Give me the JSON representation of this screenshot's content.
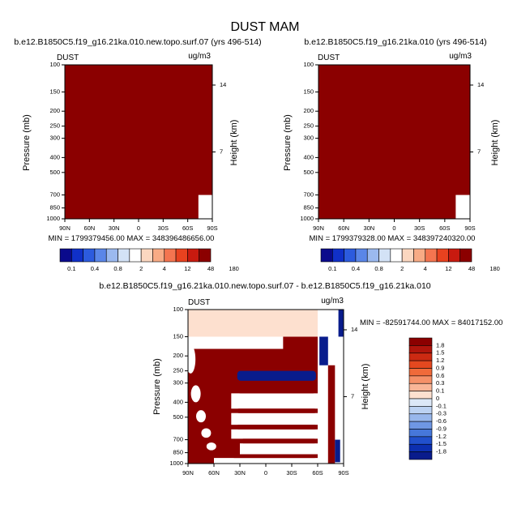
{
  "figure_title": "DUST MAM",
  "chart_data": [
    {
      "type": "heatmap",
      "panel": "left",
      "title": "b.e12.B1850C5.f19_g16.21ka.010.new.topo.surf.07 (yrs 496-514)",
      "variable": "DUST",
      "units": "ug/m3",
      "ylabel": "Pressure (mb)",
      "y2label": "Height (km)",
      "xticks": [
        "90N",
        "60N",
        "30N",
        "0",
        "30S",
        "60S",
        "90S"
      ],
      "yticks": [
        "100",
        "150",
        "200",
        "250",
        "300",
        "400",
        "500",
        "700",
        "850",
        "1000"
      ],
      "y2ticks": [
        "14",
        "7"
      ],
      "ylim": [
        1000,
        100
      ],
      "y_scale": "log",
      "x_range": [
        "90N",
        "90S"
      ],
      "field": "uniform maximum (all values above 180 ug/m3), blank only over southern polar surface",
      "fill_color": "#8b0000",
      "stats_text": "MIN = 1799379456.00   MAX = 348396486656.00",
      "colorbar": {
        "labels": [
          "0.1",
          "0.4",
          "0.8",
          "2",
          "4",
          "12",
          "48",
          "180"
        ],
        "colors": [
          "#0a0a8c",
          "#1030c8",
          "#2c5bde",
          "#5a86e8",
          "#9bb9ef",
          "#d3e2f6",
          "#ffffff",
          "#fbd7c0",
          "#f8ab85",
          "#f47550",
          "#e8421f",
          "#c81a0f",
          "#8b0000"
        ]
      }
    },
    {
      "type": "heatmap",
      "panel": "right",
      "title": "b.e12.B1850C5.f19_g16.21ka.010 (yrs 496-514)",
      "variable": "DUST",
      "units": "ug/m3",
      "ylabel": "Pressure (mb)",
      "y2label": "Height (km)",
      "xticks": [
        "90N",
        "60N",
        "30N",
        "0",
        "30S",
        "60S",
        "90S"
      ],
      "yticks": [
        "100",
        "150",
        "200",
        "250",
        "300",
        "400",
        "500",
        "700",
        "850",
        "1000"
      ],
      "y2ticks": [
        "14",
        "7"
      ],
      "ylim": [
        1000,
        100
      ],
      "y_scale": "log",
      "x_range": [
        "90N",
        "90S"
      ],
      "field": "uniform maximum (all values above 180 ug/m3), blank only over southern polar surface",
      "fill_color": "#8b0000",
      "stats_text": "MIN = 1799379328.00   MAX = 348397240320.00",
      "colorbar": {
        "labels": [
          "0.1",
          "0.4",
          "0.8",
          "2",
          "4",
          "12",
          "48",
          "180"
        ],
        "colors": [
          "#0a0a8c",
          "#1030c8",
          "#2c5bde",
          "#5a86e8",
          "#9bb9ef",
          "#d3e2f6",
          "#ffffff",
          "#fbd7c0",
          "#f8ab85",
          "#f47550",
          "#e8421f",
          "#c81a0f",
          "#8b0000"
        ]
      }
    },
    {
      "type": "heatmap",
      "panel": "difference",
      "title": "b.e12.B1850C5.f19_g16.21ka.010.new.topo.surf.07 - b.e12.B1850C5.f19_g16.21ka.010",
      "variable": "DUST",
      "units": "ug/m3",
      "ylabel": "Pressure (mb)",
      "y2label": "Height (km)",
      "xticks": [
        "90N",
        "60N",
        "30N",
        "0",
        "30S",
        "60S",
        "90S"
      ],
      "yticks": [
        "100",
        "150",
        "200",
        "250",
        "300",
        "400",
        "500",
        "700",
        "850",
        "1000"
      ],
      "y2ticks": [
        "14",
        "7"
      ],
      "ylim": [
        1000,
        100
      ],
      "y_scale": "log",
      "stats_text": "MIN = -82591744.00   MAX = 84017152.00",
      "bands": [
        {
          "p_top": 100,
          "p_bottom": 150,
          "lat_from": 90,
          "lat_to": -60,
          "value": "0.1 to 0.3"
        },
        {
          "p_top": 250,
          "p_bottom": 290,
          "lat_from": 33,
          "lat_to": -58,
          "value": "below -1.8"
        },
        {
          "p_top": 300,
          "p_bottom": 350,
          "lat_from": 33,
          "lat_to": -58,
          "value": "above 1.8"
        },
        {
          "p_top": 440,
          "p_bottom": 470,
          "lat_from": 35,
          "lat_to": -60,
          "value": "above 1.8"
        },
        {
          "p_top": 560,
          "p_bottom": 600,
          "lat_from": 35,
          "lat_to": -60,
          "value": "above 1.8"
        },
        {
          "p_top": 690,
          "p_bottom": 740,
          "lat_from": 30,
          "lat_to": -60,
          "value": "above 1.8"
        },
        {
          "p_top": 870,
          "p_bottom": 920,
          "lat_from": 40,
          "lat_to": -60,
          "value": "above 1.8"
        }
      ],
      "colorbar": {
        "labels": [
          "1.8",
          "1.5",
          "1.2",
          "0.9",
          "0.6",
          "0.3",
          "0.1",
          "0",
          "-0.1",
          "-0.3",
          "-0.6",
          "-0.9",
          "-1.2",
          "-1.5",
          "-1.8"
        ],
        "colors": [
          "#8b0000",
          "#b0150c",
          "#cc2a12",
          "#e4481f",
          "#f06a3a",
          "#f59068",
          "#f9b597",
          "#fde0cf",
          "#dce8f7",
          "#bcd2f2",
          "#98b7ec",
          "#6f97e4",
          "#4677da",
          "#2150cc",
          "#0c2fb0",
          "#091c8c"
        ]
      }
    }
  ]
}
